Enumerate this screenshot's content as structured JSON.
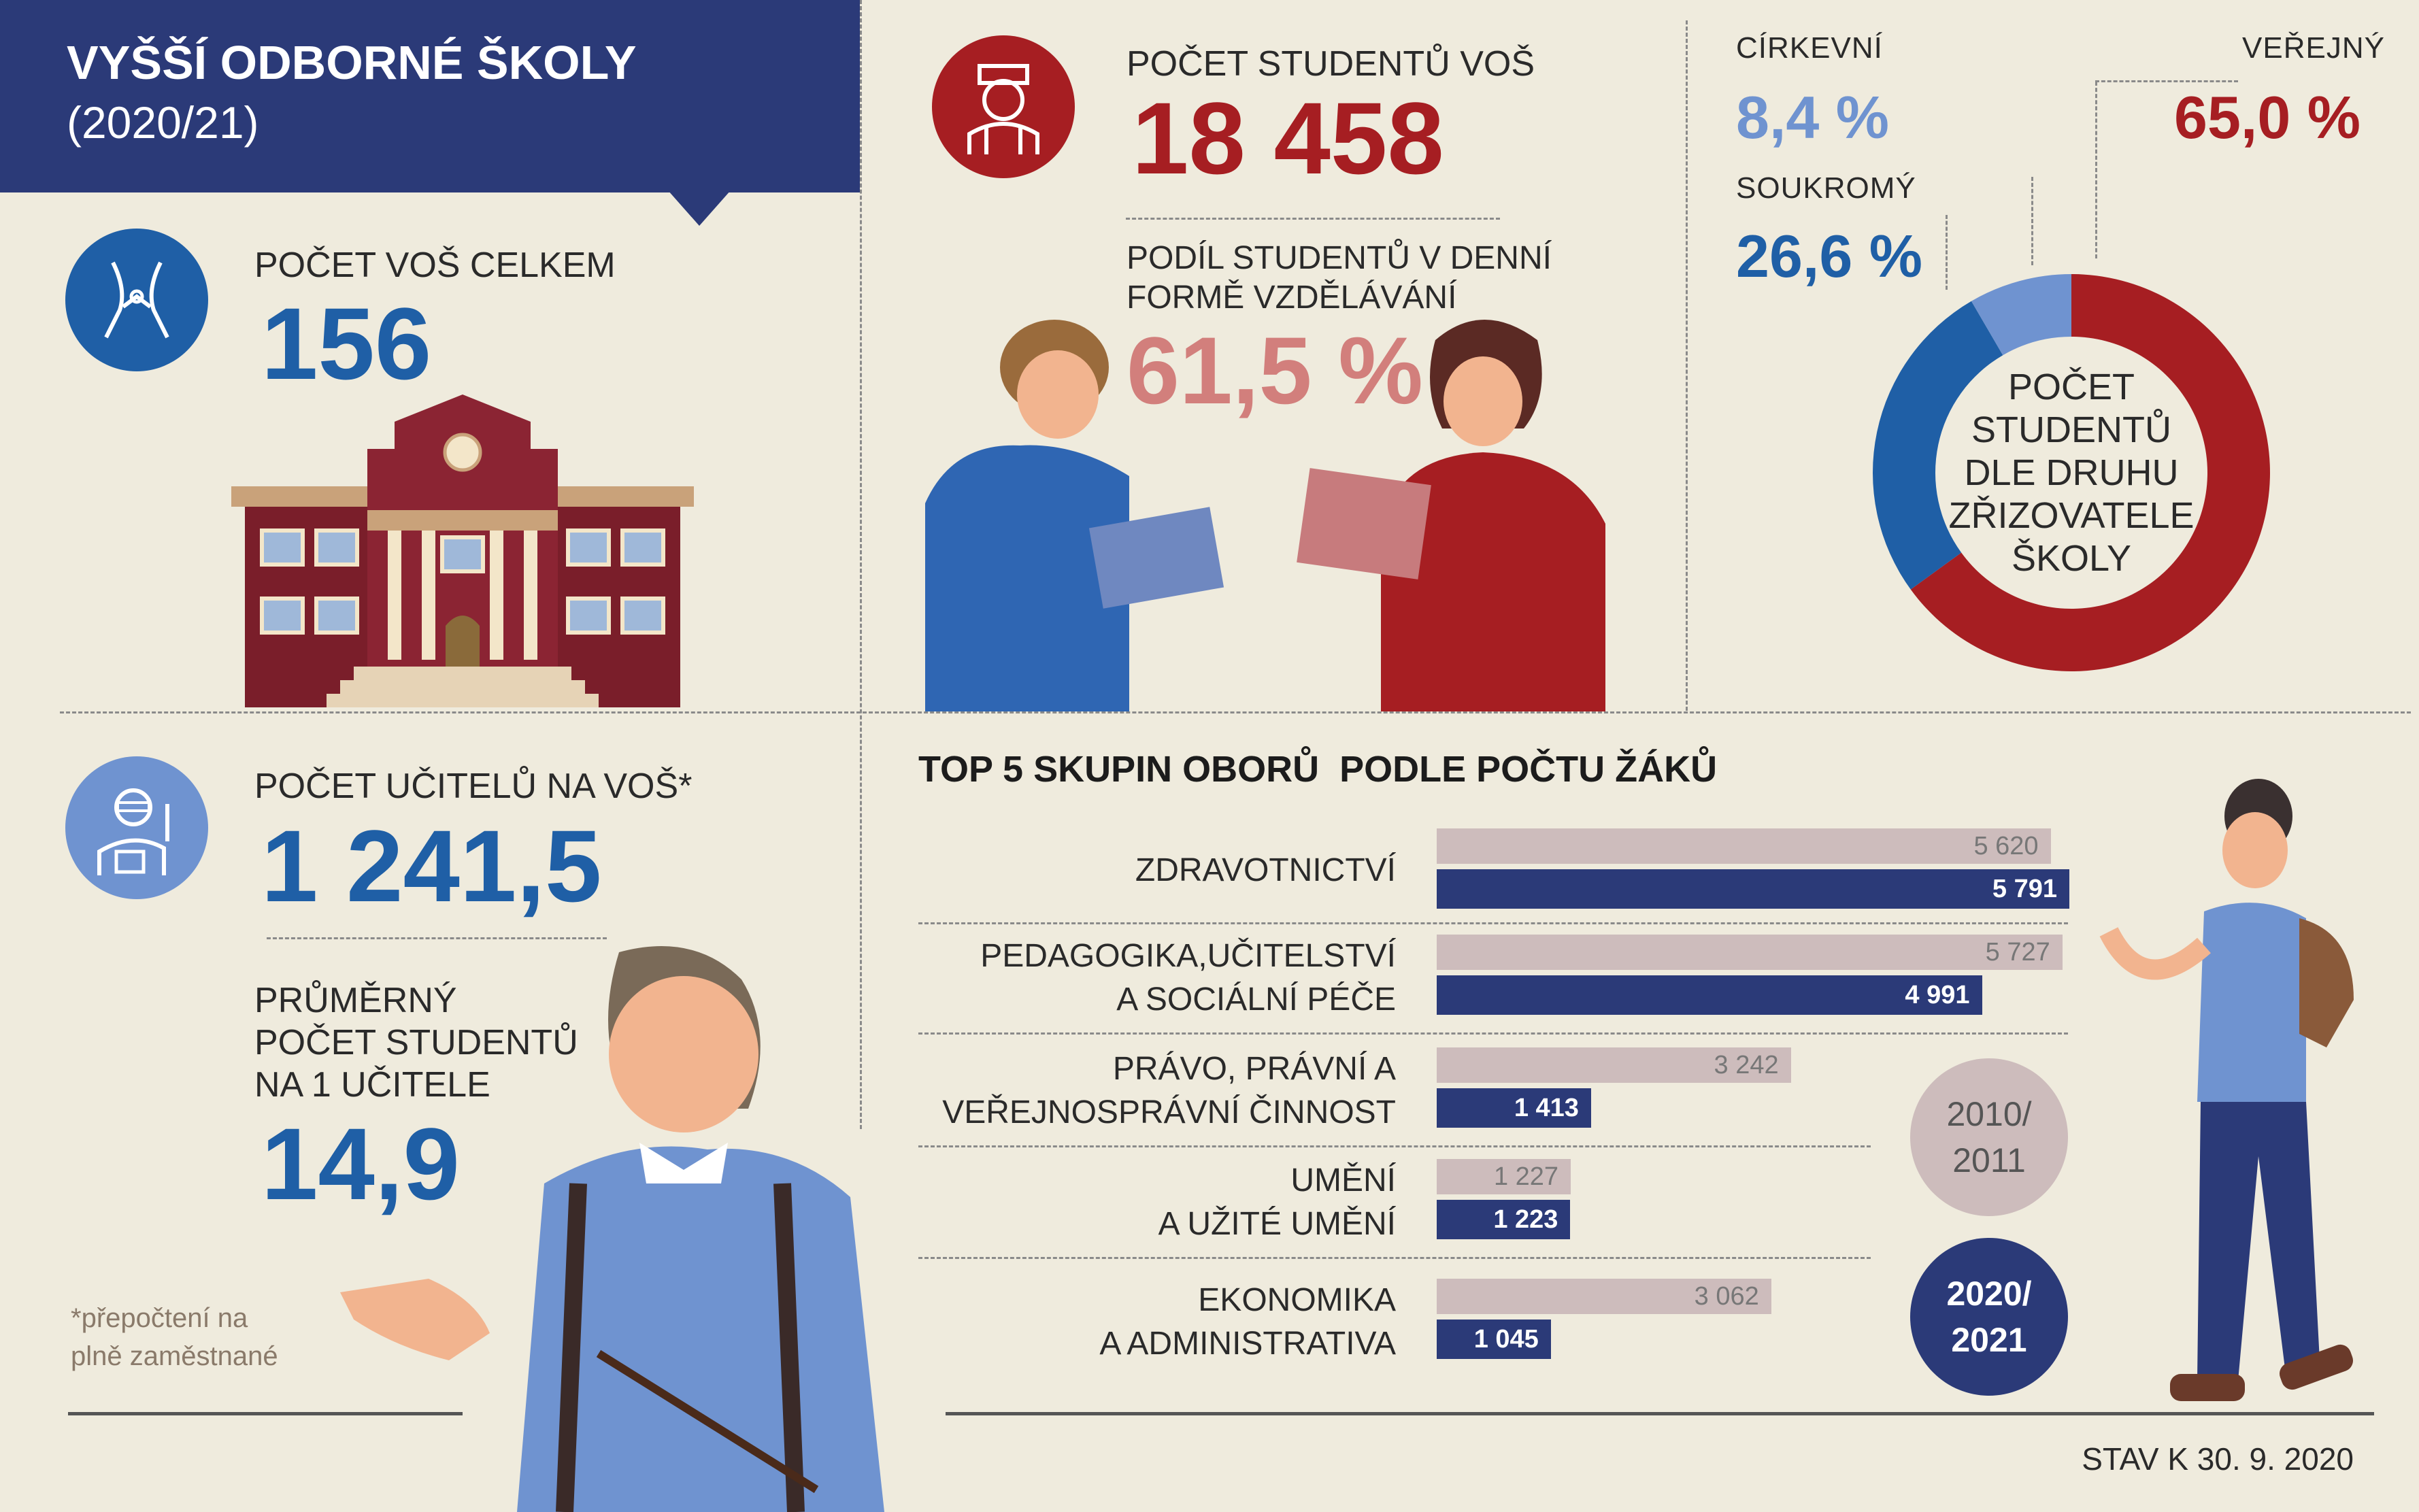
{
  "header": {
    "title": "VYŠŠÍ ODBORNÉ ŠKOLY",
    "subtitle": "(2020/21)"
  },
  "schools": {
    "label": "POČET VOŠ CELKEM",
    "value": "156"
  },
  "students": {
    "label": "POČET STUDENTŮ VOŠ",
    "value": "18 458",
    "daily_label_line1": "PODÍL STUDENTŮ V DENNÍ",
    "daily_label_line2": "FORMĚ VZDĚLÁVÁNÍ",
    "daily_value": "61,5 %"
  },
  "teachers": {
    "label": "POČET UČITELŮ NA VOŠ*",
    "value": "1 241,5",
    "avg_label_line1": "PRŮMĚRNÝ",
    "avg_label_line2": "POČET STUDENTŮ",
    "avg_label_line3": "NA 1 UČITELE",
    "avg_value": "14,9",
    "footnote_line1": "*přepočtení na",
    "footnote_line2": "plně zaměstnané"
  },
  "colors": {
    "navy": "#2b3a78",
    "red": "#a61e22",
    "blue": "#1f5fa6",
    "light_blue": "#6f93d0",
    "old_bar": "#cdbcbc"
  },
  "chart_data": [
    {
      "type": "pie",
      "title": "POČET STUDENTŮ DLE DRUHU ZŘIZOVATELE ŠKOLY",
      "title_lines": [
        "POČET",
        "STUDENTŮ",
        "DLE DRUHU",
        "ZŘIZOVATELE",
        "ŠKOLY"
      ],
      "slices": [
        {
          "name": "VEŘEJNÝ",
          "value": 65.0,
          "label": "65,0 %",
          "color": "#a61e22"
        },
        {
          "name": "SOUKROMÝ",
          "value": 26.6,
          "label": "26,6 %",
          "color": "#1f5fa6"
        },
        {
          "name": "CÍRKEVNÍ",
          "value": 8.4,
          "label": "8,4 %",
          "color": "#6f93d0"
        }
      ]
    },
    {
      "type": "bar",
      "orientation": "horizontal",
      "title": "TOP 5 SKUPIN OBORŮ  PODLE POČTU ŽÁKŮ",
      "categories": [
        [
          "ZDRAVOTNICTVÍ"
        ],
        [
          "PEDAGOGIKA,UČITELSTVÍ",
          "A SOCIÁLNÍ PÉČE"
        ],
        [
          "PRÁVO, PRÁVNÍ A",
          "VEŘEJNOSPRÁVNÍ ČINNOST"
        ],
        [
          "UMĚNÍ",
          "A UŽITÉ UMĚNÍ"
        ],
        [
          "EKONOMIKA",
          "A ADMINISTRATIVA"
        ]
      ],
      "series": [
        {
          "name": "2010/ 2011",
          "values": [
            5620,
            5727,
            3242,
            1227,
            3062
          ],
          "labels": [
            "5 620",
            "5 727",
            "3 242",
            "1 227",
            "3 062"
          ],
          "color": "#cdbcbc"
        },
        {
          "name": "2020/ 2021",
          "values": [
            5791,
            4991,
            1413,
            1223,
            1045
          ],
          "labels": [
            "5 791",
            "4 991",
            "1 413",
            "1 223",
            "1 045"
          ],
          "color": "#2b3a78"
        }
      ],
      "legend": [
        "2010/",
        "2011",
        "2020/",
        "2021"
      ]
    }
  ],
  "footer": {
    "date": "STAV K 30. 9. 2020"
  }
}
